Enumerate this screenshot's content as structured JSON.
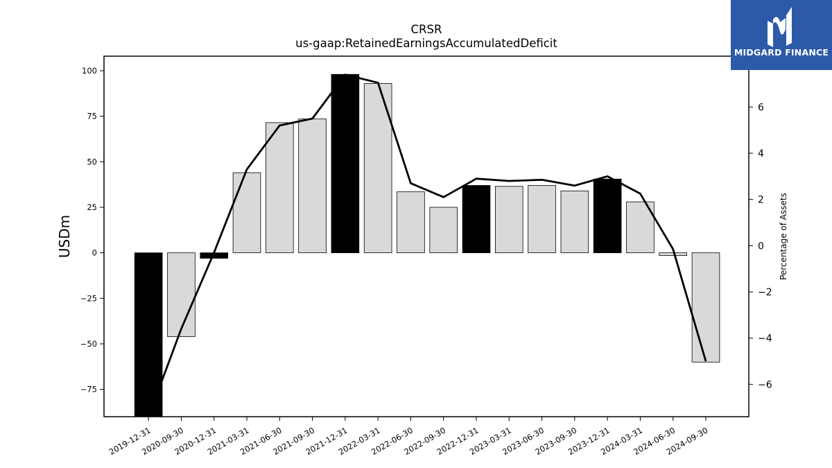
{
  "logo": {
    "text": "MIDGARD FINANCE",
    "icon": "midgard-logo-icon",
    "background": "#2c5aa8"
  },
  "chart_data": {
    "type": "bar",
    "title": "CRSR",
    "subtitle": "us-gaap:RetainedEarningsAccumulatedDeficit",
    "ylabel": "USDm",
    "y2label": "Percentage of Assets",
    "ylim": [
      -90,
      108
    ],
    "y2lim": [
      -7.4,
      8.2
    ],
    "yticks": [
      -75,
      -50,
      -25,
      0,
      25,
      50,
      75,
      100
    ],
    "y2ticks": [
      -6,
      -4,
      -2,
      0,
      2,
      4,
      6
    ],
    "ytick_labels": [
      "−75",
      "−50",
      "−25",
      "0",
      "25",
      "50",
      "75",
      "100"
    ],
    "y2tick_labels": [
      "−6",
      "−4",
      "−2",
      "0",
      "2",
      "4",
      "6"
    ],
    "grid": false,
    "categories": [
      "2019-12-31",
      "2020-09-30",
      "2020-12-31",
      "2021-03-31",
      "2021-06-30",
      "2021-09-30",
      "2021-12-31",
      "2022-03-31",
      "2022-06-30",
      "2022-09-30",
      "2022-12-31",
      "2023-03-31",
      "2023-06-30",
      "2023-09-30",
      "2023-12-31",
      "2024-03-31",
      "2024-06-30",
      "2024-09-30"
    ],
    "series": [
      {
        "type": "bar",
        "axis": "left",
        "values": [
          -90,
          -46,
          -3,
          44,
          71.5,
          73.5,
          98,
          93,
          33.5,
          25,
          37,
          36.5,
          37,
          34,
          40.5,
          28,
          -1.5,
          -60
        ],
        "fill": [
          "#000000",
          "#d9d9d9",
          "#000000",
          "#d9d9d9",
          "#d9d9d9",
          "#d9d9d9",
          "#000000",
          "#d9d9d9",
          "#d9d9d9",
          "#d9d9d9",
          "#000000",
          "#d9d9d9",
          "#d9d9d9",
          "#d9d9d9",
          "#000000",
          "#d9d9d9",
          "#d9d9d9",
          "#d9d9d9"
        ]
      },
      {
        "type": "line",
        "axis": "right",
        "color": "#000000",
        "values": [
          -7.4,
          -3.6,
          -0.3,
          3.3,
          5.2,
          5.5,
          7.4,
          7.05,
          2.7,
          2.1,
          2.9,
          2.8,
          2.85,
          2.6,
          3.0,
          2.25,
          -0.15,
          -5.0
        ]
      }
    ]
  }
}
